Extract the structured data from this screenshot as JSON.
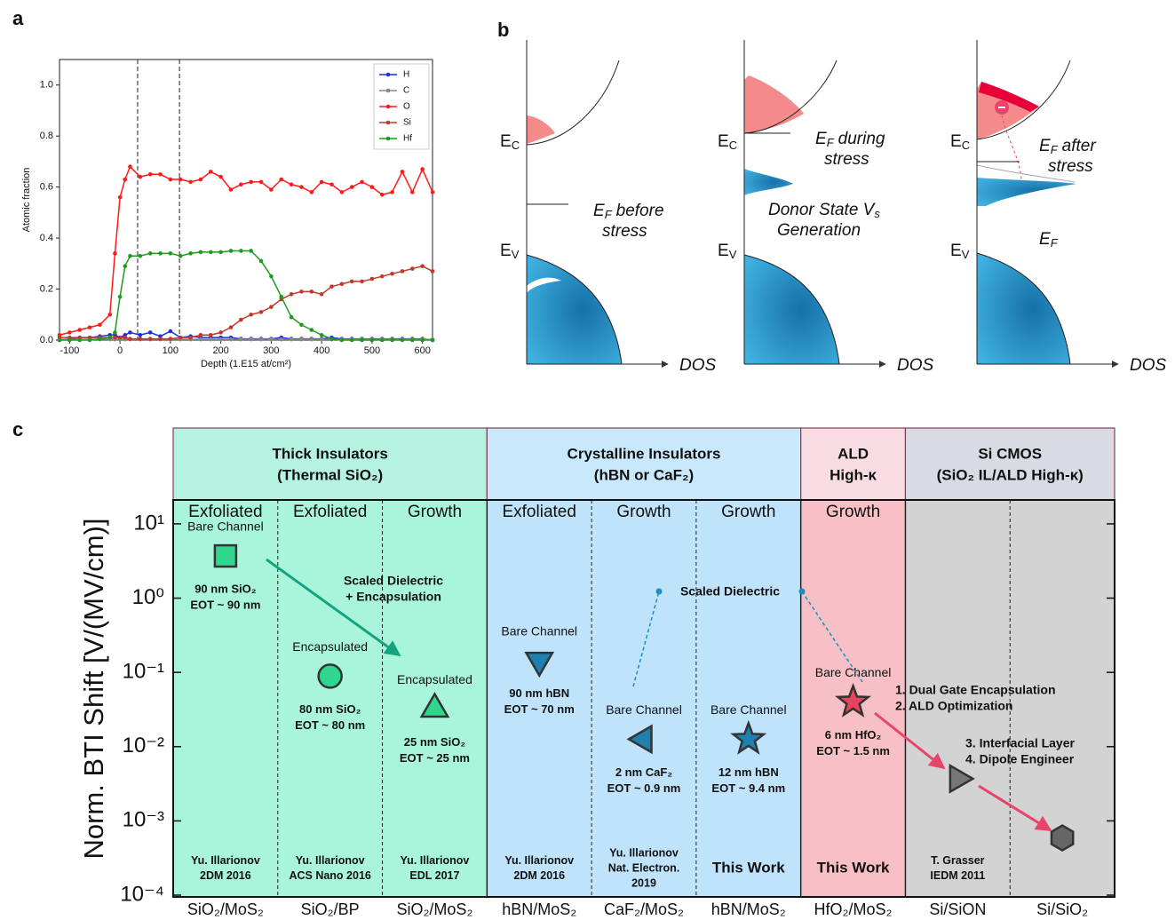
{
  "panel_labels": [
    "a",
    "b",
    "c"
  ],
  "chart_data": [
    {
      "type": "line",
      "xlabel": "Depth (1.E15 at/cm²)",
      "ylabel": "Atomic fraction",
      "x": [
        -120,
        -100,
        -80,
        -60,
        -40,
        -20,
        -10,
        0,
        10,
        20,
        40,
        60,
        80,
        100,
        120,
        140,
        160,
        180,
        200,
        220,
        240,
        260,
        280,
        300,
        320,
        340,
        360,
        380,
        400,
        420,
        440,
        460,
        480,
        500,
        520,
        540,
        560,
        580,
        600,
        620
      ],
      "series": [
        {
          "name": "H",
          "color": "#1a2fe0",
          "values": [
            0,
            0.005,
            0.01,
            0.01,
            0.015,
            0.02,
            0.02,
            0.01,
            0.02,
            0.03,
            0.02,
            0.03,
            0.015,
            0.035,
            0.01,
            0.015,
            0.01,
            0.01,
            0.01,
            0.01,
            0.005,
            0.005,
            0.005,
            0.005,
            0.01,
            0.005,
            0.005,
            0.005,
            0.005,
            0.01,
            0.005,
            0.005,
            0.005,
            0.005,
            0.005,
            0.005,
            0.005,
            0.005,
            0.005,
            0
          ]
        },
        {
          "name": "C",
          "color": "#888888",
          "values": [
            0.003,
            0.003,
            0.003,
            0.003,
            0.003,
            0.003,
            0.003,
            0.003,
            0.003,
            0.003,
            0.003,
            0.003,
            0.003,
            0.003,
            0.003,
            0.003,
            0.003,
            0.003,
            0.003,
            0.003,
            0.003,
            0.003,
            0.003,
            0.003,
            0.003,
            0.003,
            0.003,
            0.003,
            0.003,
            0.003,
            0.003,
            0.003,
            0.003,
            0.003,
            0.003,
            0.003,
            0.003,
            0.003,
            0.003,
            0.003
          ]
        },
        {
          "name": "O",
          "color": "#ff1a1a",
          "values": [
            0.02,
            0.03,
            0.04,
            0.05,
            0.06,
            0.1,
            0.34,
            0.56,
            0.63,
            0.68,
            0.64,
            0.65,
            0.65,
            0.63,
            0.63,
            0.62,
            0.63,
            0.66,
            0.64,
            0.59,
            0.61,
            0.62,
            0.62,
            0.59,
            0.63,
            0.61,
            0.6,
            0.58,
            0.62,
            0.61,
            0.58,
            0.6,
            0.62,
            0.6,
            0.57,
            0.58,
            0.66,
            0.58,
            0.67,
            0.58
          ]
        },
        {
          "name": "Si",
          "color": "#c0392b",
          "values": [
            0.01,
            0.01,
            0.01,
            0.01,
            0.01,
            0.01,
            0.01,
            0.01,
            0.01,
            0.005,
            0.005,
            0.005,
            0.005,
            0.005,
            0.01,
            0.01,
            0.02,
            0.02,
            0.03,
            0.05,
            0.08,
            0.1,
            0.11,
            0.13,
            0.16,
            0.18,
            0.19,
            0.19,
            0.18,
            0.21,
            0.22,
            0.23,
            0.23,
            0.24,
            0.25,
            0.26,
            0.27,
            0.28,
            0.29,
            0.27
          ]
        },
        {
          "name": "Hf",
          "color": "#1f9a1f",
          "values": [
            0,
            0,
            0,
            0,
            0.005,
            0.01,
            0.03,
            0.17,
            0.29,
            0.33,
            0.33,
            0.34,
            0.34,
            0.34,
            0.33,
            0.34,
            0.345,
            0.345,
            0.345,
            0.35,
            0.35,
            0.35,
            0.31,
            0.25,
            0.17,
            0.09,
            0.06,
            0.04,
            0.02,
            0.005,
            0,
            0,
            0,
            0,
            0,
            0,
            0,
            0,
            0,
            0
          ]
        }
      ],
      "xlim": [
        -120,
        620
      ],
      "xticks": [
        -100,
        0,
        100,
        200,
        300,
        400,
        500,
        600
      ],
      "ylim": [
        0,
        1.1
      ],
      "yticks": [
        {
          "value": 0,
          "label": "0.0"
        },
        {
          "value": 0.2,
          "label": "0.2"
        },
        {
          "value": 0.4,
          "label": "0.4"
        },
        {
          "value": 0.6,
          "label": "0.6"
        },
        {
          "value": 0.8,
          "label": "0.8"
        },
        {
          "value": 1,
          "label": "1.0"
        }
      ],
      "vlines": [
        35,
        118
      ],
      "legend": "upper right"
    },
    {
      "type": "category-scatter",
      "ylabel": "Norm. BTI Shift [V/(MV/cm)]",
      "log_y": true,
      "ylim": [
        0.0001,
        21
      ],
      "yticks": [
        {
          "value": 0.0001,
          "label": "10⁻⁴"
        },
        {
          "value": 0.001,
          "label": "10⁻³"
        },
        {
          "value": 0.01,
          "label": "10⁻²"
        },
        {
          "value": 0.1,
          "label": "10⁻¹"
        },
        {
          "value": 1,
          "label": "10⁰"
        },
        {
          "value": 10,
          "label": "10¹"
        }
      ],
      "groups": [
        {
          "name": "Thick Insulators",
          "subtitle": "(Thermal SiO₂)",
          "header_color": "#b5f3e0",
          "color": "#a9f5db",
          "columns": [
            {
              "method": "Exfoliated",
              "category": "SiO₂/MoS₂",
              "marker": "square",
              "color": "#2fd68c",
              "value": 3.7,
              "label": "Bare Channel",
              "spec": [
                "90 nm SiO₂",
                "EOT ~ 90 nm"
              ],
              "reference": [
                "Yu. Illarionov",
                "2DM 2016"
              ]
            },
            {
              "method": "Exfoliated",
              "category": "SiO₂/BP",
              "marker": "circle",
              "color": "#2fd68c",
              "value": 0.089,
              "label": "Encapsulated",
              "spec": [
                "80 nm SiO₂",
                "EOT ~ 80 nm"
              ],
              "reference": [
                "Yu. Illarionov",
                "ACS Nano 2016"
              ]
            },
            {
              "method": "Growth",
              "category": "SiO₂/MoS₂",
              "marker": "triangle-up",
              "color": "#2fd68c",
              "value": 0.032,
              "label": "Encapsulated",
              "spec": [
                "25 nm SiO₂",
                "EOT ~ 25 nm"
              ],
              "reference": [
                "Yu. Illarionov",
                "EDL 2017"
              ]
            }
          ]
        },
        {
          "name": "Crystalline Insulators",
          "subtitle": "(hBN or CaF₂)",
          "header_color": "#c9e8fb",
          "color": "#bfe3fb",
          "columns": [
            {
              "method": "Exfoliated",
              "category": "hBN/MoS₂",
              "marker": "triangle-down",
              "color": "#1f7fae",
              "value": 0.145,
              "label": "Bare Channel",
              "spec": [
                "90 nm hBN",
                "EOT ~ 70 nm"
              ],
              "reference": [
                "Yu. Illarionov",
                "2DM 2016"
              ]
            },
            {
              "method": "Growth",
              "category": "CaF₂/MoS₂",
              "marker": "triangle-left",
              "color": "#1f7fae",
              "value": 0.0126,
              "label": "Bare Channel",
              "spec": [
                "2 nm CaF₂",
                "EOT ~ 0.9 nm"
              ],
              "reference": [
                "Yu. Illarionov",
                "Nat. Electron.",
                "2019"
              ]
            },
            {
              "method": "Growth",
              "category": "hBN/MoS₂",
              "marker": "star",
              "color": "#1f7fae",
              "value": 0.0126,
              "label": "Bare Channel",
              "spec": [
                "12 nm hBN",
                "EOT ~ 9.4 nm"
              ],
              "reference": [
                "This Work"
              ],
              "reference_color": "#1a8fc0"
            }
          ]
        },
        {
          "name": "ALD",
          "subtitle": "High-κ",
          "header_color": "#f9dbe3",
          "color": "#f7c0c6",
          "columns": [
            {
              "method": "Growth",
              "category": "HfO₂/MoS₂",
              "marker": "star",
              "color": "#e8445f",
              "value": 0.04,
              "label": "Bare Channel",
              "spec": [
                "6 nm HfO₂",
                "EOT ~ 1.5 nm"
              ],
              "reference": [
                "This Work"
              ],
              "reference_color": "#e8446a"
            }
          ]
        },
        {
          "name": "Si CMOS",
          "subtitle": "(SiO₂ IL/ALD High-κ)",
          "header_color": "#d8dbe3",
          "color": "#d3d3d3",
          "columns": [
            {
              "category": "Si/SiON",
              "marker": "triangle-right",
              "color": "#777777",
              "value": 0.0037,
              "reference": [
                "T. Grasser",
                "IEDM 2011"
              ]
            },
            {
              "category": "Si/SiO₂",
              "marker": "hexagon",
              "color": "#666666",
              "value": 0.00059
            }
          ]
        }
      ],
      "annotations": [
        {
          "lines": [
            "Scaled Dielectric",
            "+ Encapsulation"
          ],
          "color": "#14a37f"
        },
        {
          "lines": [
            "Scaled Dielectric"
          ],
          "color": "#1a8fc0"
        },
        {
          "lines": [
            "1. Dual Gate Encapsulation",
            "2. ALD Optimization"
          ],
          "color": "#e8446a"
        },
        {
          "lines": [
            "3. Interfacial Layer",
            "4. Dipole Engineer"
          ],
          "color": "#e8446a"
        }
      ]
    }
  ],
  "diagram": {
    "axis_label": "DOS",
    "panels": [
      {
        "ec": {
          "symbol": "E",
          "subscript": "C"
        },
        "ev": {
          "symbol": "E",
          "subscript": "V"
        },
        "ef": {
          "symbol": "E",
          "subscript": "F",
          "lines": [
            "before",
            "stress"
          ]
        }
      },
      {
        "ec": {
          "symbol": "E",
          "subscript": "C"
        },
        "ev": {
          "symbol": "E",
          "subscript": "V"
        },
        "ef": {
          "symbol": "E",
          "subscript": "F",
          "lines": [
            "during",
            "stress"
          ]
        },
        "state": {
          "lines": [
            "Donor State V",
            "Generation"
          ],
          "subscript": "s"
        }
      },
      {
        "ec": {
          "symbol": "E",
          "subscript": "C"
        },
        "ev": {
          "symbol": "E",
          "subscript": "V"
        },
        "ef": {
          "symbol": "E",
          "subscript": "F",
          "lines": [
            "after",
            "stress"
          ]
        },
        "ef2": {
          "symbol": "E",
          "subscript": "F"
        }
      }
    ]
  }
}
